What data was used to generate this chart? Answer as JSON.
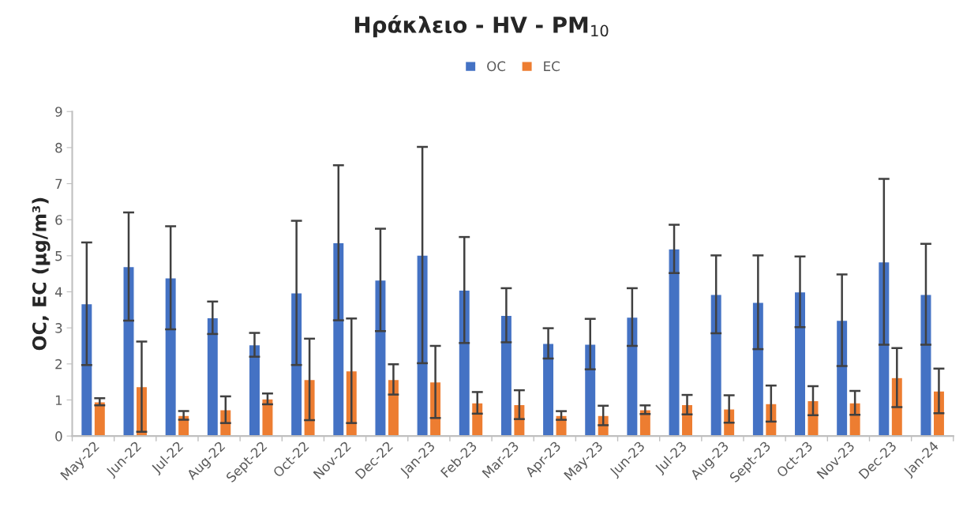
{
  "chart_data": {
    "type": "bar",
    "title": "Ηράκλειο - HV - PM$_{10}$",
    "ylabel": "OC, EC (μg/m³)",
    "categories": [
      "May-22",
      "Jun-22",
      "Jul-22",
      "Aug-22",
      "Sept-22",
      "Oct-22",
      "Nov-22",
      "Dec-22",
      "Jan-23",
      "Feb-23",
      "Mar-23",
      "Apr-23",
      "May-23",
      "Jun-23",
      "Jul-23",
      "Aug-23",
      "Sept-23",
      "Oct-23",
      "Nov-23",
      "Dec-23",
      "Jan-24"
    ],
    "series": [
      {
        "name": "OC",
        "color": "#4472c4",
        "values": [
          3.67,
          4.7,
          4.39,
          3.28,
          2.53,
          3.97,
          5.36,
          4.33,
          5.02,
          4.05,
          3.35,
          2.57,
          2.55,
          3.3,
          5.19,
          3.93,
          3.71,
          4.0,
          3.21,
          4.83,
          3.93
        ],
        "errors": [
          1.7,
          1.5,
          1.43,
          0.45,
          0.33,
          2.0,
          2.15,
          1.42,
          3.0,
          1.47,
          0.75,
          0.42,
          0.7,
          0.8,
          0.67,
          1.08,
          1.3,
          0.98,
          1.27,
          2.3,
          1.4
        ]
      },
      {
        "name": "EC",
        "color": "#ed7d31",
        "values": [
          0.95,
          1.37,
          0.57,
          0.73,
          1.03,
          1.57,
          1.81,
          1.57,
          1.5,
          0.92,
          0.87,
          0.57,
          0.57,
          0.73,
          0.87,
          0.75,
          0.9,
          0.98,
          0.92,
          1.62,
          1.25
        ],
        "errors": [
          0.1,
          1.25,
          0.12,
          0.37,
          0.15,
          1.13,
          1.45,
          0.42,
          1.0,
          0.3,
          0.4,
          0.12,
          0.27,
          0.12,
          0.27,
          0.38,
          0.5,
          0.4,
          0.33,
          0.82,
          0.62
        ]
      }
    ],
    "ylim": [
      0,
      9
    ],
    "yticks": [
      0,
      1,
      2,
      3,
      4,
      5,
      6,
      7,
      8,
      9
    ],
    "grid": false,
    "legend": "top"
  }
}
